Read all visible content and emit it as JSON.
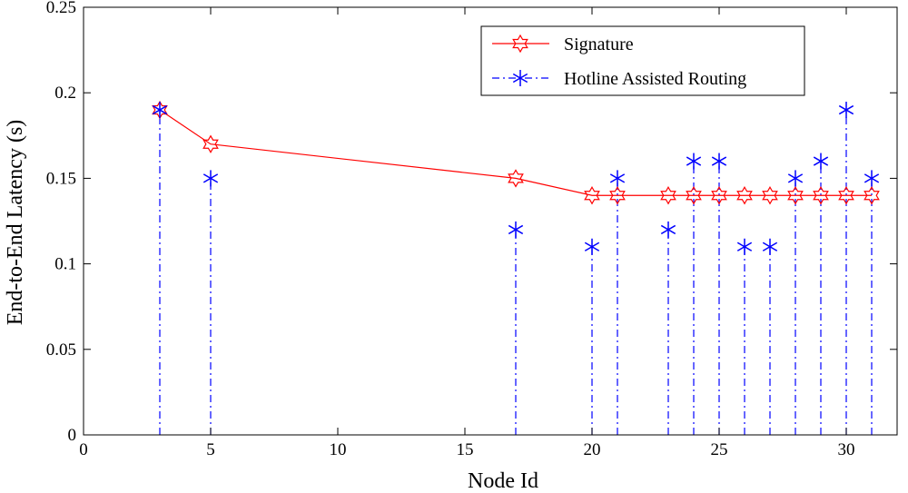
{
  "chart_data": {
    "type": "line",
    "title": "",
    "xlabel": "Node Id",
    "ylabel": "End-to-End Latency (s)",
    "xlim": [
      0,
      32
    ],
    "ylim": [
      0,
      0.25
    ],
    "xticks": [
      0,
      5,
      10,
      15,
      20,
      25,
      30
    ],
    "yticks": [
      0,
      0.05,
      0.1,
      0.15,
      0.2,
      0.25
    ],
    "xtick_labels": [
      "0",
      "5",
      "10",
      "15",
      "20",
      "25",
      "30"
    ],
    "ytick_labels": [
      "0",
      "0.05",
      "0.1",
      "0.15",
      "0.2",
      "0.25"
    ],
    "grid": false,
    "legend_position": "top-right",
    "series": [
      {
        "name": "Signature",
        "style": "line-hexagram",
        "color": "#ff0000",
        "x": [
          3,
          5,
          17,
          20,
          21,
          23,
          24,
          25,
          26,
          27,
          28,
          29,
          30,
          31
        ],
        "y": [
          0.19,
          0.17,
          0.15,
          0.14,
          0.14,
          0.14,
          0.14,
          0.14,
          0.14,
          0.14,
          0.14,
          0.14,
          0.14,
          0.14
        ]
      },
      {
        "name": "Hotline Assisted Routing",
        "style": "stem-asterisk",
        "color": "#0000ff",
        "x": [
          3,
          5,
          17,
          20,
          21,
          23,
          24,
          25,
          26,
          27,
          28,
          29,
          30,
          31
        ],
        "y": [
          0.19,
          0.15,
          0.12,
          0.11,
          0.15,
          0.12,
          0.16,
          0.16,
          0.11,
          0.11,
          0.15,
          0.16,
          0.19,
          0.15
        ]
      }
    ]
  }
}
